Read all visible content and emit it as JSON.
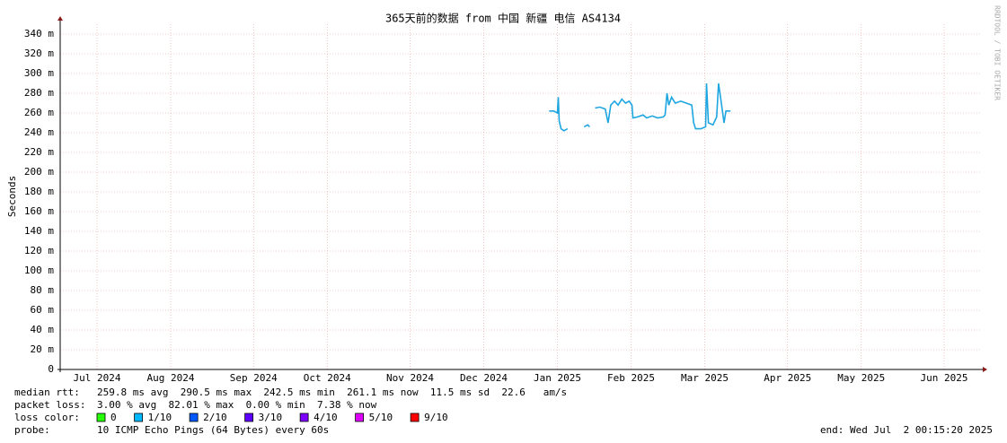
{
  "chart_data": {
    "type": "line",
    "title": "365天前的数据 from 中国 新疆 电信 AS4134",
    "y_label": "Seconds",
    "side_text": "RRDTOOL / TOBI OETIKER",
    "xlim": [
      2024.5,
      2025.5
    ],
    "ylim": [
      0,
      0.35
    ],
    "grid": true,
    "xticks": [
      {
        "value": 2024.54,
        "label": "Jul 2024"
      },
      {
        "value": 2024.62,
        "label": "Aug 2024"
      },
      {
        "value": 2024.71,
        "label": "Sep 2024"
      },
      {
        "value": 2024.79,
        "label": "Oct 2024"
      },
      {
        "value": 2024.88,
        "label": "Nov 2024"
      },
      {
        "value": 2024.96,
        "label": "Dec 2024"
      },
      {
        "value": 2025.04,
        "label": "Jan 2025"
      },
      {
        "value": 2025.12,
        "label": "Feb 2025"
      },
      {
        "value": 2025.2,
        "label": "Mar 2025"
      },
      {
        "value": 2025.29,
        "label": "Apr 2025"
      },
      {
        "value": 2025.37,
        "label": "May 2025"
      },
      {
        "value": 2025.46,
        "label": "Jun 2025"
      }
    ],
    "yticks": [
      0,
      {
        "value": 0.02,
        "label": "20 m"
      },
      {
        "value": 0.04,
        "label": "40 m"
      },
      {
        "value": 0.06,
        "label": "60 m"
      },
      {
        "value": 0.08,
        "label": "80 m"
      },
      {
        "value": 0.1,
        "label": "100 m"
      },
      {
        "value": 0.12,
        "label": "120 m"
      },
      {
        "value": 0.14,
        "label": "140 m"
      },
      {
        "value": 0.16,
        "label": "160 m"
      },
      {
        "value": 0.18,
        "label": "180 m"
      },
      {
        "value": 0.2,
        "label": "200 m"
      },
      {
        "value": 0.22,
        "label": "220 m"
      },
      {
        "value": 0.24,
        "label": "240 m"
      },
      {
        "value": 0.26,
        "label": "260 m"
      },
      {
        "value": 0.28,
        "label": "280 m"
      },
      {
        "value": 0.3,
        "label": "300 m"
      },
      {
        "value": 0.32,
        "label": "320 m"
      },
      {
        "value": 0.34,
        "label": "340 m"
      }
    ],
    "x": [
      2025.031,
      2025.036,
      2025.04,
      2025.041,
      2025.042,
      2025.044,
      2025.047,
      2025.051,
      null,
      2025.069,
      2025.073,
      2025.075,
      null,
      2025.081,
      2025.086,
      2025.092,
      2025.095,
      2025.098,
      2025.102,
      2025.106,
      2025.11,
      2025.114,
      2025.118,
      2025.121,
      2025.122,
      2025.127,
      2025.133,
      2025.137,
      2025.143,
      2025.149,
      2025.155,
      2025.157,
      2025.159,
      2025.161,
      2025.164,
      2025.168,
      2025.174,
      2025.18,
      2025.186,
      2025.188,
      2025.19,
      2025.196,
      2025.201,
      2025.202,
      2025.204,
      2025.209,
      2025.213,
      2025.215,
      2025.218,
      2025.221,
      2025.223,
      2025.228
    ],
    "series": [
      {
        "name": "median rtt",
        "color": "#1ea6e0",
        "values": [
          0.262,
          0.262,
          0.26,
          0.276,
          0.252,
          0.244,
          0.242,
          0.244,
          null,
          0.246,
          0.248,
          0.246,
          null,
          0.265,
          0.266,
          0.264,
          0.25,
          0.268,
          0.272,
          0.268,
          0.274,
          0.27,
          0.272,
          0.268,
          0.255,
          0.256,
          0.258,
          0.255,
          0.257,
          0.255,
          0.256,
          0.258,
          0.28,
          0.268,
          0.276,
          0.27,
          0.272,
          0.27,
          0.268,
          0.25,
          0.244,
          0.244,
          0.246,
          0.29,
          0.25,
          0.248,
          0.256,
          0.29,
          0.27,
          0.25,
          0.262,
          0.262
        ]
      }
    ],
    "stats": [
      {
        "label": "median rtt:",
        "text": "259.8 ms avg  290.5 ms max  242.5 ms min  261.1 ms now  11.5 ms sd  22.6   am/s"
      },
      {
        "label": "packet loss:",
        "text": "3.00 % avg  82.01 % max  0.00 % min  7.38 % now"
      }
    ],
    "loss_color": {
      "label": "loss color:",
      "items": [
        {
          "label": "0",
          "color": "#26ff00"
        },
        {
          "label": "1/10",
          "color": "#00b8ff"
        },
        {
          "label": "2/10",
          "color": "#0059ff"
        },
        {
          "label": "3/10",
          "color": "#5e00ff"
        },
        {
          "label": "4/10",
          "color": "#7e00ff"
        },
        {
          "label": "5/10",
          "color": "#dd00ff"
        },
        {
          "label": "9/10",
          "color": "#ff0000"
        }
      ]
    },
    "probe": {
      "label": "probe:",
      "text": "10 ICMP Echo Pings (64 Bytes) every 60s"
    },
    "end": "end: Wed Jul  2 00:15:20 2025"
  }
}
